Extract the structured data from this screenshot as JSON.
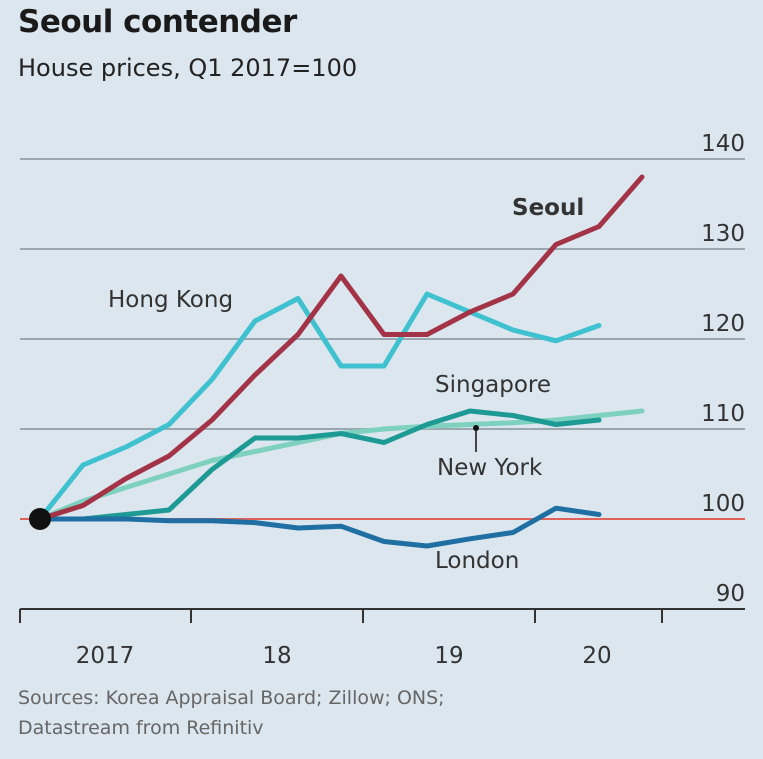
{
  "chart_data": {
    "type": "line",
    "title": "Seoul contender",
    "subtitle": "House prices, Q1 2017=100",
    "source": "Sources: Korea Appraisal Board; Zillow; ONS; Datastream from Refinitiv",
    "x": [
      "2017 Q1",
      "2017 Q2",
      "2017 Q3",
      "2017 Q4",
      "2018 Q1",
      "2018 Q2",
      "2018 Q3",
      "2018 Q4",
      "2019 Q1",
      "2019 Q2",
      "2019 Q3",
      "2019 Q4",
      "2020 Q1",
      "2020 Q2",
      "2020 Q3"
    ],
    "x_tick_labels": [
      "2017",
      "18",
      "19",
      "20"
    ],
    "y_ticks": [
      90,
      100,
      110,
      120,
      130,
      140
    ],
    "ylim": [
      90,
      140
    ],
    "grid": true,
    "baseline": 100,
    "series": [
      {
        "name": "Hong Kong",
        "color": "#3fc1cf",
        "values": [
          100,
          106,
          108,
          110.5,
          115.5,
          122,
          124.5,
          117,
          117,
          125,
          123,
          121,
          119.8,
          121.5,
          null
        ]
      },
      {
        "name": "New York",
        "color": "#7fd1bf",
        "values": [
          100,
          102,
          103.5,
          105,
          106.5,
          107.5,
          108.5,
          109.5,
          110,
          110.3,
          110.5,
          110.7,
          111,
          111.5,
          112
        ]
      },
      {
        "name": "Singapore",
        "color": "#1e9a94",
        "values": [
          100,
          100,
          100.5,
          101,
          105.5,
          109,
          109,
          109.5,
          108.5,
          110.5,
          112,
          111.5,
          110.5,
          111,
          null
        ]
      },
      {
        "name": "London",
        "color": "#1f6fa3",
        "values": [
          100,
          100,
          100,
          99.8,
          99.8,
          99.6,
          99,
          99.2,
          97.5,
          97,
          97.8,
          98.5,
          101.2,
          100.5,
          null
        ]
      },
      {
        "name": "Seoul",
        "color": "#a33447",
        "values": [
          100,
          101.5,
          104.5,
          107,
          111,
          116,
          120.5,
          127,
          120.5,
          120.5,
          123,
          125,
          130.5,
          132.5,
          138
        ]
      }
    ]
  }
}
